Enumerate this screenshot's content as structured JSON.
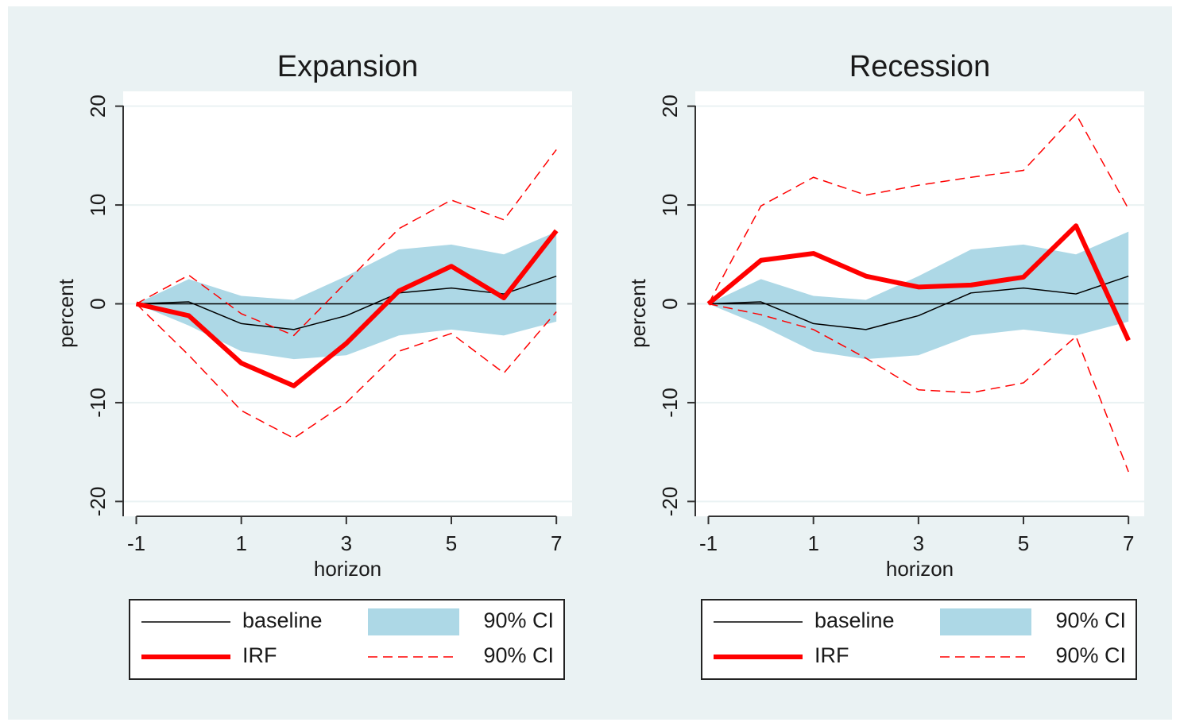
{
  "chart_data": [
    {
      "type": "line",
      "title": "Expansion",
      "x_label": "horizon",
      "y_label": "percent",
      "x": [
        -1,
        0,
        1,
        2,
        3,
        4,
        5,
        6,
        7
      ],
      "xlim": [
        -1.25,
        7.3
      ],
      "xticks": [
        -1,
        1,
        3,
        5,
        7
      ],
      "ylim": [
        -21.5,
        21.5
      ],
      "yticks": [
        -20,
        -10,
        0,
        10,
        20
      ],
      "grid": true,
      "series": [
        {
          "name": "baseline",
          "color": "#000000",
          "style": "line",
          "width": 1.5,
          "values": [
            0,
            0.2,
            -2,
            -2.6,
            -1.2,
            1.1,
            1.6,
            1.0,
            2.8
          ]
        },
        {
          "name": "90% CI",
          "color": "#add8e6",
          "style": "band",
          "upper": [
            0,
            2.5,
            0.8,
            0.4,
            2.8,
            5.5,
            6.0,
            5.0,
            7.3
          ],
          "lower": [
            0,
            -2.2,
            -4.8,
            -5.6,
            -5.2,
            -3.2,
            -2.6,
            -3.2,
            -1.8
          ]
        },
        {
          "name": "IRF",
          "color": "#ff0000",
          "style": "line",
          "width": 6,
          "values": [
            0,
            -1.2,
            -6,
            -8.3,
            -4,
            1.3,
            3.8,
            0.6,
            7.4
          ]
        },
        {
          "name": "90% CI",
          "color": "#ff0000",
          "style": "dash",
          "upper": [
            0,
            2.9,
            -1,
            -3.2,
            2.2,
            7.6,
            10.5,
            8.5,
            15.6
          ],
          "lower": [
            0,
            -5.2,
            -10.8,
            -13.6,
            -10,
            -4.8,
            -3,
            -7,
            -0.8
          ]
        }
      ]
    },
    {
      "type": "line",
      "title": "Recession",
      "x_label": "horizon",
      "y_label": "percent",
      "x": [
        -1,
        0,
        1,
        2,
        3,
        4,
        5,
        6,
        7
      ],
      "xlim": [
        -1.25,
        7.3
      ],
      "xticks": [
        -1,
        1,
        3,
        5,
        7
      ],
      "ylim": [
        -21.5,
        21.5
      ],
      "yticks": [
        -20,
        -10,
        0,
        10,
        20
      ],
      "grid": true,
      "series": [
        {
          "name": "baseline",
          "color": "#000000",
          "style": "line",
          "width": 1.5,
          "values": [
            0,
            0.2,
            -2,
            -2.6,
            -1.2,
            1.1,
            1.6,
            1.0,
            2.8
          ]
        },
        {
          "name": "90% CI",
          "color": "#add8e6",
          "style": "band",
          "upper": [
            0,
            2.5,
            0.8,
            0.4,
            2.8,
            5.5,
            6.0,
            5.0,
            7.3
          ],
          "lower": [
            0,
            -2.2,
            -4.8,
            -5.6,
            -5.2,
            -3.2,
            -2.6,
            -3.2,
            -1.8
          ]
        },
        {
          "name": "IRF",
          "color": "#ff0000",
          "style": "line",
          "width": 6,
          "values": [
            0,
            4.4,
            5.1,
            2.8,
            1.7,
            1.9,
            2.7,
            7.9,
            -3.7
          ]
        },
        {
          "name": "90% CI",
          "color": "#ff0000",
          "style": "dash",
          "upper": [
            0,
            9.9,
            12.8,
            11,
            12,
            12.8,
            13.5,
            19.2,
            9.6
          ],
          "lower": [
            0,
            -1.1,
            -2.6,
            -5.5,
            -8.7,
            -9,
            -8,
            -3.3,
            -17
          ]
        }
      ]
    }
  ]
}
